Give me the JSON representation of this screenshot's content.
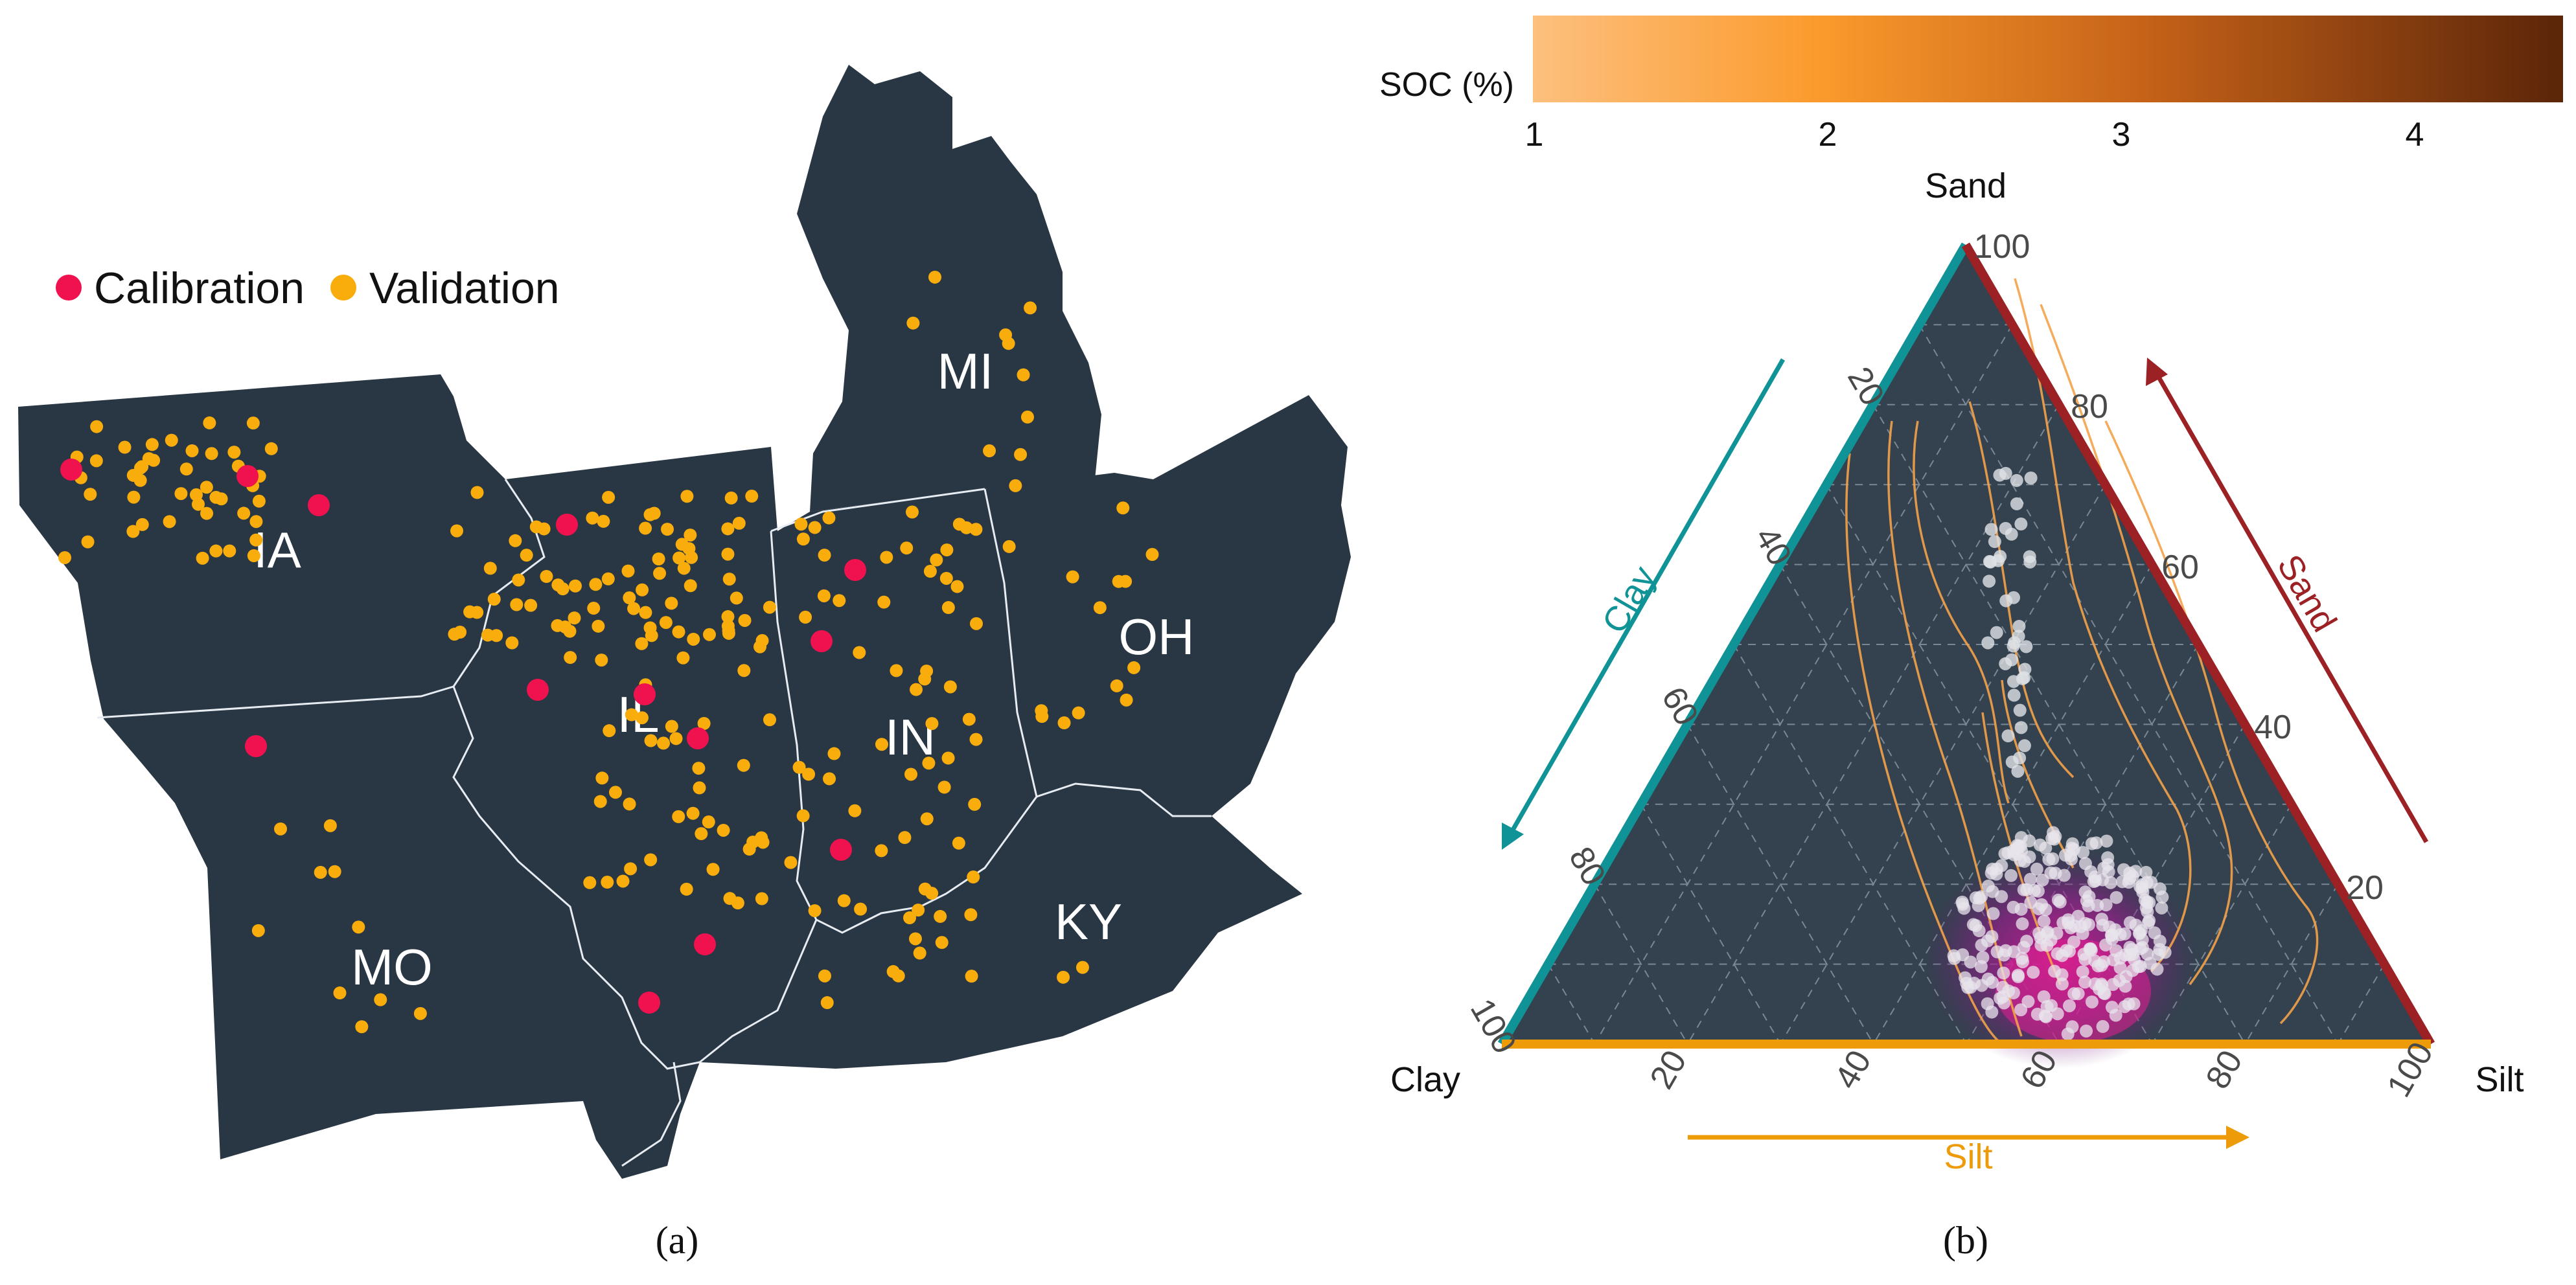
{
  "panel_a": {
    "legend": {
      "calibration_label": "Calibration",
      "validation_label": "Validation",
      "calibration_color": "#f0124f",
      "validation_color": "#f8ad0c"
    },
    "state_labels": [
      "IA",
      "IL",
      "IN",
      "OH",
      "MI",
      "MO",
      "KY"
    ],
    "land_color": "#293644",
    "caption": "(a)"
  },
  "panel_b": {
    "colorbar": {
      "label": "SOC (%)",
      "ticks": [
        "1",
        "2",
        "3",
        "4"
      ],
      "range": [
        1,
        4.5
      ]
    },
    "corners": {
      "top": "Sand",
      "left": "Clay",
      "right": "Silt"
    },
    "axis_titles": {
      "clay": "Clay",
      "sand": "Sand",
      "silt": "Silt"
    },
    "tick_values": [
      "20",
      "40",
      "60",
      "80",
      "100"
    ],
    "axis_colors": {
      "clay": "#0f9396",
      "sand": "#9b2125",
      "silt": "#ee9b0a"
    },
    "caption": "(b)"
  }
}
